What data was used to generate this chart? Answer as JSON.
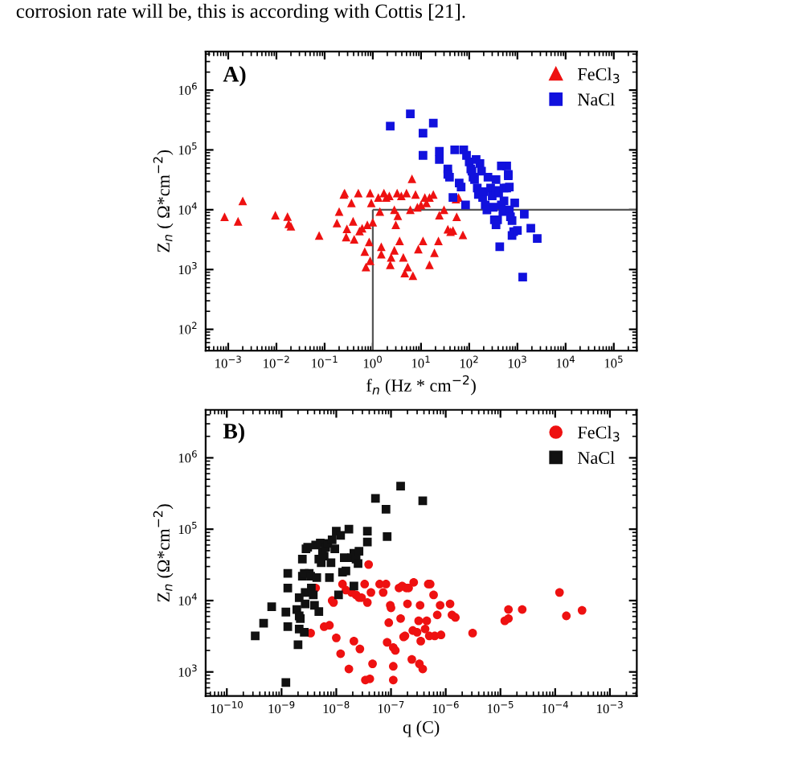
{
  "chart_data": [
    {
      "type": "scatter",
      "title": "A)",
      "xlabel": "f$_{n}$ (Hz * cm$^{−2}$)",
      "ylabel": "Z$_{n}$ ( Ω*cm$^{−2}$)",
      "log": "xy",
      "legend": "top right",
      "annotations": [
        "corrosion rate will be, this is according with Cottis [21]."
      ],
      "xlim": [
        0.00034,
        300000
      ],
      "ylim": [
        44,
        4400000
      ],
      "xticks": [
        {
          "value": 0.001,
          "label": "10$^{−3}$"
        },
        {
          "value": 0.01,
          "label": "10$^{−2}$"
        },
        {
          "value": 0.1,
          "label": "10$^{−1}$"
        },
        {
          "value": 1,
          "label": "10$^{0}$"
        },
        {
          "value": 10,
          "label": "10$^{1}$"
        },
        {
          "value": 100,
          "label": "10$^{2}$"
        },
        {
          "value": 1000,
          "label": "10$^{3}$"
        },
        {
          "value": 10000,
          "label": "10$^{4}$"
        },
        {
          "value": 100000,
          "label": "10$^{5}$"
        }
      ],
      "yticks": [
        {
          "value": 100,
          "label": "10$^{2}$"
        },
        {
          "value": 1000,
          "label": "10$^{3}$"
        },
        {
          "value": 10000,
          "label": "10$^{4}$"
        },
        {
          "value": 100000,
          "label": "10$^{5}$"
        },
        {
          "value": 1000000,
          "label": "10$^{6}$"
        }
      ],
      "ref_lines": [
        {
          "axis": "x",
          "value": 1,
          "color": "#555555"
        },
        {
          "axis": "y",
          "value": 10000,
          "color": "#555555"
        }
      ],
      "series": [
        {
          "name": "FeCl$_{3}$",
          "color": "#ee1111",
          "marker": "triangle",
          "x": [
            0.00084,
            0.0016,
            0.002,
            0.0095,
            0.017,
            0.018,
            0.02,
            0.077,
            0.18,
            0.2,
            0.25,
            0.26,
            0.28,
            0.29,
            0.36,
            0.39,
            0.41,
            0.5,
            0.53,
            0.6,
            0.68,
            0.72,
            0.77,
            0.84,
            0.88,
            0.93,
            0.88,
            1.0,
            1.3,
            1.4,
            1.5,
            1.5,
            1.7,
            1.9,
            2.2,
            2.3,
            2.4,
            2.8,
            2.8,
            3.0,
            3.2,
            3.3,
            3.6,
            3.9,
            4.3,
            4.6,
            5.0,
            5.3,
            6.0,
            6.5,
            6.8,
            7.7,
            8.4,
            8.8,
            10,
            11,
            12,
            13,
            15,
            15,
            18,
            19,
            23,
            24,
            30,
            36,
            41,
            46,
            53,
            55,
            60,
            74
          ],
          "values": [
            7600,
            6400,
            14000,
            8100,
            7700,
            5800,
            5300,
            3700,
            6000,
            9300,
            18000,
            19000,
            3500,
            4800,
            13000,
            6400,
            3200,
            19000,
            4400,
            4900,
            2000,
            1100,
            5600,
            2900,
            19000,
            13000,
            1400,
            6200,
            16000,
            9300,
            1800,
            2400,
            19000,
            16000,
            17000,
            1200,
            1600,
            2100,
            10000,
            5600,
            19000,
            7900,
            3000,
            17000,
            1600,
            870,
            19000,
            1100,
            10000,
            33000,
            790,
            18000,
            11000,
            2200,
            12000,
            3000,
            16000,
            13000,
            16000,
            1200,
            18000,
            1900,
            3000,
            8100,
            10000,
            4700,
            4300,
            4500,
            15000,
            7600,
            16000,
            3800
          ]
        },
        {
          "name": "NaCl",
          "color": "#1111dd",
          "marker": "square",
          "x": [
            2.3,
            6.0,
            11,
            18,
            24,
            24,
            11,
            50,
            36,
            36,
            39,
            46,
            62,
            68,
            77,
            88,
            84,
            100,
            108,
            114,
            120,
            129,
            139,
            147,
            155,
            167,
            180,
            190,
            200,
            215,
            233,
            245,
            278,
            300,
            316,
            333,
            360,
            388,
            408,
            464,
            500,
            527,
            600,
            647,
            681,
            718,
            774,
            836,
            360,
            430,
            464,
            527,
            600,
            681,
            774,
            880,
            1000,
            1290,
            1390,
            1900,
            2580,
            647,
            360
          ],
          "values": [
            250000,
            400000,
            190000,
            280000,
            95000,
            69000,
            81000,
            100000,
            48000,
            39000,
            35000,
            16000,
            28000,
            24000,
            100000,
            81000,
            12000,
            63000,
            48000,
            44000,
            35000,
            32000,
            69000,
            23000,
            18000,
            59000,
            44000,
            16000,
            20000,
            12000,
            9900,
            35000,
            23000,
            17000,
            11000,
            6800,
            21000,
            6800,
            19000,
            12000,
            9300,
            23000,
            54000,
            37000,
            9900,
            7600,
            3700,
            4300,
            5600,
            2400,
            54000,
            14000,
            23000,
            24000,
            6600,
            13000,
            4500,
            750,
            8400,
            4900,
            3300,
            39000,
            32000
          ]
        }
      ]
    },
    {
      "type": "scatter",
      "title": "B)",
      "xlabel": "q (C)",
      "ylabel": "Z$_{n}$ (Ω*cm$^{−2}$)",
      "log": "xy",
      "legend": "top right",
      "xlim": [
        4.1e-11,
        0.0031
      ],
      "ylim": [
        460,
        4700000
      ],
      "xticks": [
        {
          "value": 1e-10,
          "label": "10$^{−10}$"
        },
        {
          "value": 1e-09,
          "label": "10$^{−9}$"
        },
        {
          "value": 1e-08,
          "label": "10$^{−8}$"
        },
        {
          "value": 1e-07,
          "label": "10$^{−7}$"
        },
        {
          "value": 1e-06,
          "label": "10$^{−6}$"
        },
        {
          "value": 1e-05,
          "label": "10$^{−5}$"
        },
        {
          "value": 0.0001,
          "label": "10$^{−4}$"
        },
        {
          "value": 0.001,
          "label": "10$^{−3}$"
        }
      ],
      "yticks": [
        {
          "value": 1000,
          "label": "10$^{3}$"
        },
        {
          "value": 10000,
          "label": "10$^{4}$"
        },
        {
          "value": 100000,
          "label": "10$^{5}$"
        },
        {
          "value": 1000000,
          "label": "10$^{6}$"
        }
      ],
      "series": [
        {
          "name": "FeCl$_{3}$",
          "color": "#ee1111",
          "marker": "circle",
          "x": [
            3.4e-09,
            4.2e-09,
            6e-09,
            7.5e-09,
            8.4e-09,
            8.9e-09,
            1e-08,
            1.2e-08,
            1.3e-08,
            1.5e-08,
            1.7e-08,
            1.9e-08,
            2.1e-08,
            2.3e-08,
            2.6e-08,
            2.7e-08,
            2.9e-08,
            3.3e-08,
            3.4e-08,
            3.7e-08,
            3.9e-08,
            4.1e-08,
            4.3e-08,
            4.6e-08,
            6.2e-08,
            7.2e-08,
            8.1e-08,
            8.5e-08,
            9.1e-08,
            9.7e-08,
            1e-07,
            1.1e-07,
            1.1e-07,
            1.1e-07,
            1.2e-07,
            1.4e-07,
            1.5e-07,
            1.6e-07,
            1.7e-07,
            1.8e-07,
            1.9e-07,
            2e-07,
            2.1e-07,
            2.4e-07,
            2.5e-07,
            2.6e-07,
            3e-07,
            3.2e-07,
            3.3e-07,
            3.4e-07,
            3.5e-07,
            3.8e-07,
            4.2e-07,
            4.5e-07,
            4.8e-07,
            5e-07,
            5.2e-07,
            6e-07,
            6.3e-07,
            7e-07,
            7.9e-07,
            8.2e-07,
            1.2e-06,
            1.3e-06,
            1.5e-06,
            3.1e-06,
            1.2e-05,
            1.4e-05,
            1.4e-05,
            2.5e-05,
            0.00012,
            0.00016,
            0.00031
          ],
          "values": [
            3500,
            15000,
            4300,
            4500,
            10000,
            9400,
            3000,
            1800,
            17000,
            14000,
            1100,
            13000,
            2700,
            12000,
            11000,
            2100,
            11000,
            17000,
            770,
            9400,
            32000,
            800,
            13000,
            1300,
            17000,
            13000,
            17000,
            2600,
            4900,
            8600,
            7900,
            770,
            1200,
            2200,
            2000,
            15000,
            5600,
            16000,
            3100,
            3200,
            15000,
            9000,
            15000,
            1500,
            3800,
            18000,
            3600,
            5200,
            1300,
            8600,
            2700,
            1100,
            4000,
            5200,
            17000,
            3200,
            17000,
            12000,
            3200,
            6300,
            8600,
            3300,
            9000,
            6300,
            5800,
            3500,
            5200,
            5600,
            7500,
            7500,
            13000,
            6100,
            7300
          ]
        },
        {
          "name": "NaCl",
          "color": "#111111",
          "marker": "square",
          "x": [
            3.3e-10,
            4.7e-10,
            6.6e-10,
            1.2e-09,
            1.2e-09,
            1.3e-09,
            1.3e-09,
            1.3e-09,
            1.9e-09,
            2e-09,
            2.1e-09,
            2.1e-09,
            2.1e-09,
            2.2e-09,
            2.4e-09,
            2.4e-09,
            2.6e-09,
            2.6e-09,
            2.7e-09,
            2.7e-09,
            2.8e-09,
            3e-09,
            3.2e-09,
            3.4e-09,
            3.5e-09,
            3.8e-09,
            4e-09,
            4.2e-09,
            4.4e-09,
            4.8e-09,
            4.8e-09,
            5.1e-09,
            5.3e-09,
            5.6e-09,
            6e-09,
            6.4e-09,
            7e-09,
            7.5e-09,
            8e-09,
            8.4e-09,
            9.4e-09,
            1e-08,
            1.1e-08,
            1.2e-08,
            1.3e-08,
            1.4e-08,
            1.5e-08,
            1.7e-08,
            1.9e-08,
            2.1e-08,
            2.3e-08,
            2.5e-08,
            2.6e-08,
            3.7e-08,
            3.7e-08,
            5.2e-08,
            8.1e-08,
            8.5e-08,
            1.5e-07,
            3.8e-07,
            2.1e-08
          ],
          "values": [
            3200,
            4800,
            8200,
            710,
            6900,
            4300,
            15000,
            24000,
            7500,
            2400,
            11000,
            6100,
            4000,
            5600,
            38000,
            22000,
            24000,
            3600,
            13000,
            9000,
            53000,
            56000,
            24000,
            22000,
            15000,
            12000,
            8600,
            60000,
            21000,
            38000,
            7000,
            64000,
            34000,
            49000,
            42000,
            56000,
            63000,
            21000,
            34000,
            71000,
            53000,
            94000,
            12000,
            82000,
            25000,
            40000,
            26000,
            100000,
            40000,
            46000,
            38000,
            33000,
            49000,
            94000,
            66000,
            270000,
            190000,
            79000,
            400000,
            250000,
            16000
          ]
        }
      ]
    }
  ]
}
